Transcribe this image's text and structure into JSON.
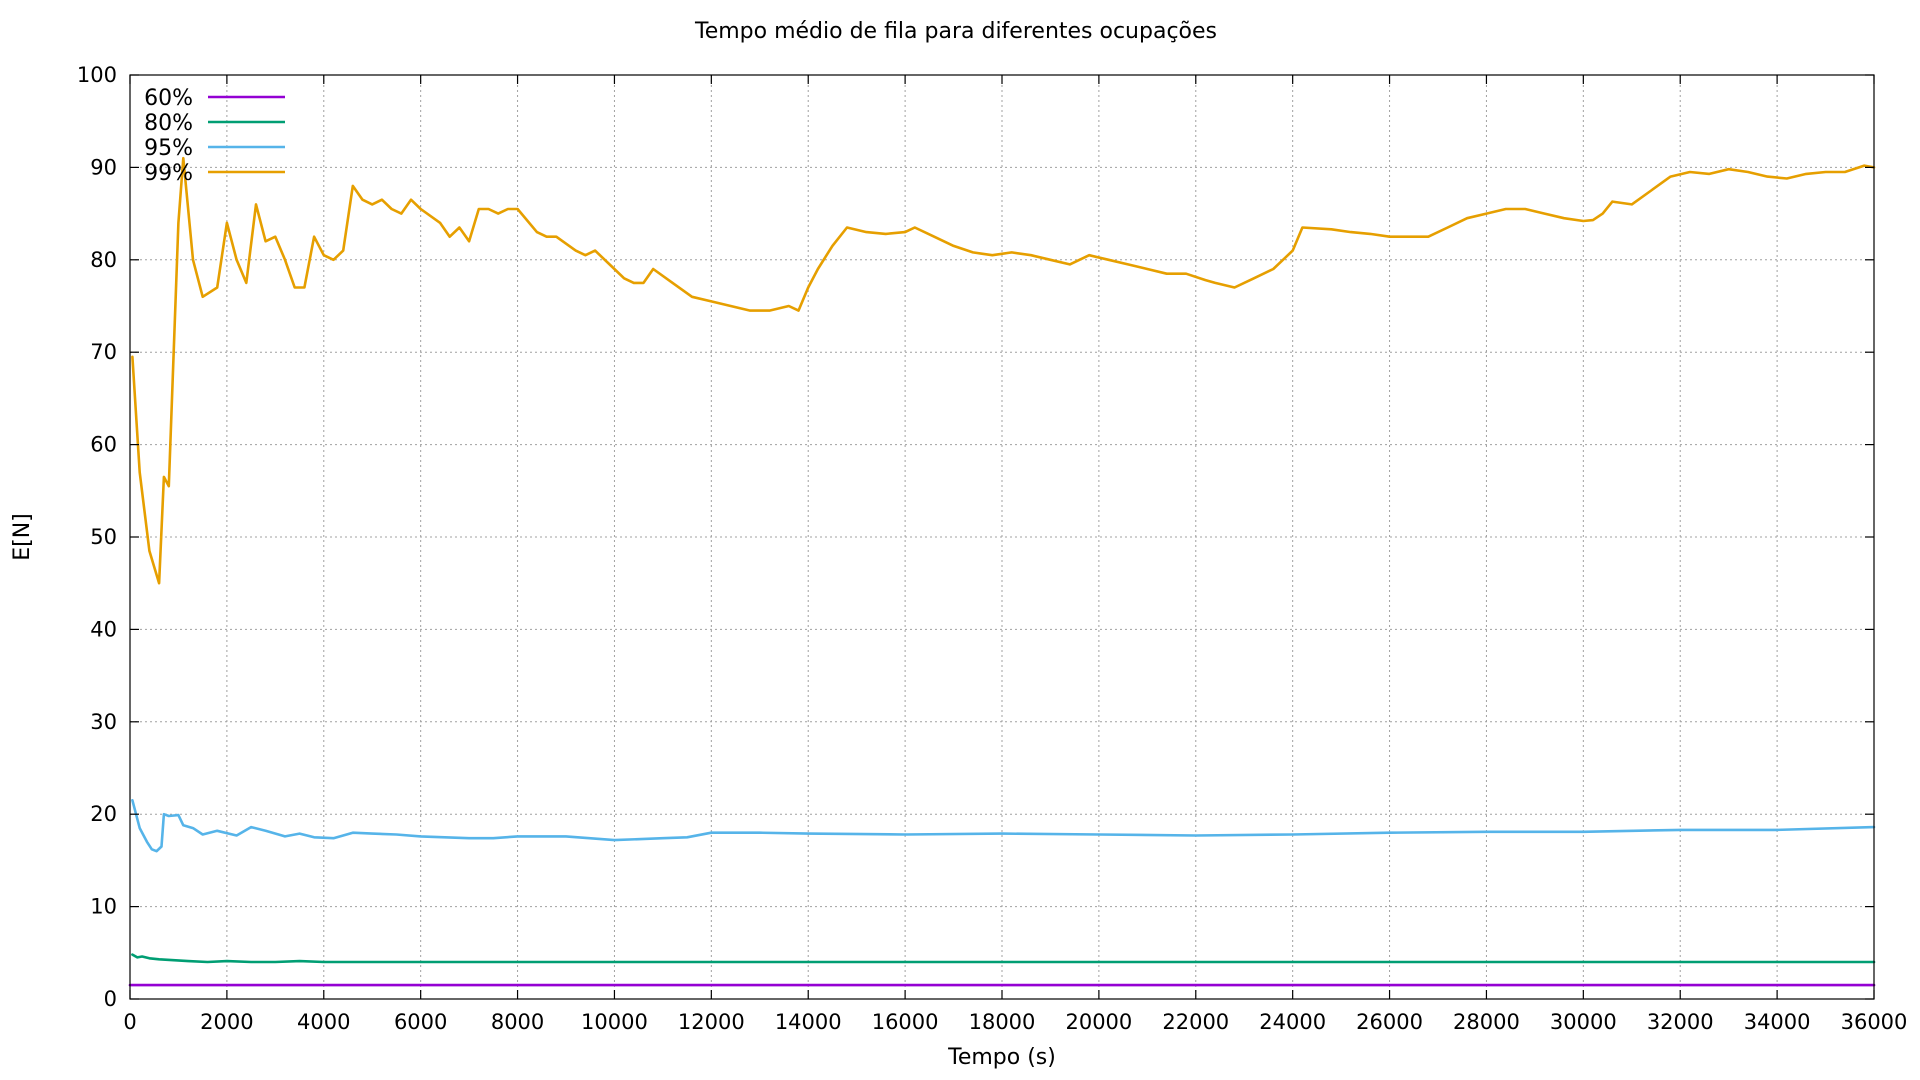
{
  "chart_data": {
    "type": "line",
    "title": "Tempo médio de fila para diferentes ocupações",
    "xlabel": "Tempo (s)",
    "ylabel": "E[N]",
    "xlim": [
      0,
      36000
    ],
    "ylim": [
      0,
      100
    ],
    "xticks": [
      0,
      2000,
      4000,
      6000,
      8000,
      10000,
      12000,
      14000,
      16000,
      18000,
      20000,
      22000,
      24000,
      26000,
      28000,
      30000,
      32000,
      34000,
      36000
    ],
    "yticks": [
      0,
      10,
      20,
      30,
      40,
      50,
      60,
      70,
      80,
      90,
      100
    ],
    "xtick_labels": [
      "0",
      "2000",
      "4000",
      "6000",
      "8000",
      "10000",
      "12000",
      "14000",
      "16000",
      "18000",
      "20000",
      "22000",
      "24000",
      "26000",
      "28000",
      "30000",
      "32000",
      "34000",
      "36000"
    ],
    "ytick_labels": [
      "0",
      "10",
      "20",
      "30",
      "40",
      "50",
      "60",
      "70",
      "80",
      "90",
      "100"
    ],
    "grid": true,
    "legend_position": "top-left",
    "series": [
      {
        "name": "60%",
        "color": "#9400d3",
        "x": [
          0,
          36000
        ],
        "y": [
          1.5,
          1.5
        ]
      },
      {
        "name": "80%",
        "color": "#009e73",
        "x": [
          50,
          150,
          250,
          400,
          600,
          900,
          1200,
          1600,
          2000,
          2500,
          3000,
          3500,
          4000,
          6000,
          10000,
          20000,
          30000,
          36000
        ],
        "y": [
          4.8,
          4.5,
          4.6,
          4.4,
          4.3,
          4.2,
          4.1,
          4.0,
          4.1,
          4.0,
          4.0,
          4.1,
          4.0,
          4.0,
          4.0,
          4.0,
          4.0,
          4.0
        ]
      },
      {
        "name": "95%",
        "color": "#56b4e9",
        "x": [
          50,
          200,
          350,
          450,
          550,
          650,
          700,
          800,
          1000,
          1100,
          1300,
          1500,
          1800,
          2200,
          2500,
          2800,
          3200,
          3500,
          3800,
          4200,
          4600,
          5000,
          5500,
          6000,
          6500,
          7000,
          7500,
          8000,
          9000,
          10000,
          11000,
          11500,
          12000,
          13000,
          14000,
          16000,
          18000,
          20000,
          22000,
          24000,
          26000,
          28000,
          30000,
          32000,
          34000,
          36000
        ],
        "y": [
          21.5,
          18.5,
          17.0,
          16.2,
          16.0,
          16.5,
          20.0,
          19.8,
          19.9,
          18.8,
          18.5,
          17.8,
          18.2,
          17.7,
          18.6,
          18.2,
          17.6,
          17.9,
          17.5,
          17.4,
          18.0,
          17.9,
          17.8,
          17.6,
          17.5,
          17.4,
          17.4,
          17.6,
          17.6,
          17.2,
          17.4,
          17.5,
          18.0,
          18.0,
          17.9,
          17.8,
          17.9,
          17.8,
          17.7,
          17.8,
          18.0,
          18.1,
          18.1,
          18.3,
          18.3,
          18.6
        ]
      },
      {
        "name": "99%",
        "color": "#e69f00",
        "x": [
          50,
          200,
          400,
          600,
          700,
          800,
          1000,
          1100,
          1300,
          1500,
          1800,
          2000,
          2200,
          2400,
          2600,
          2800,
          3000,
          3200,
          3400,
          3600,
          3800,
          4000,
          4200,
          4400,
          4600,
          4800,
          5000,
          5200,
          5400,
          5600,
          5800,
          6000,
          6400,
          6600,
          6800,
          7000,
          7200,
          7400,
          7600,
          7800,
          8000,
          8400,
          8600,
          8800,
          9200,
          9400,
          9600,
          10000,
          10200,
          10400,
          10600,
          10800,
          11200,
          11600,
          12000,
          12400,
          12800,
          13200,
          13600,
          13800,
          14000,
          14200,
          14500,
          14800,
          15200,
          15600,
          16000,
          16200,
          16600,
          17000,
          17400,
          17800,
          18200,
          18600,
          19000,
          19400,
          19800,
          20200,
          20600,
          21000,
          21400,
          21800,
          22200,
          22400,
          22800,
          23200,
          23600,
          23800,
          24000,
          24200,
          24800,
          25200,
          25600,
          26000,
          26400,
          26800,
          27200,
          27600,
          28000,
          28400,
          28800,
          29200,
          29600,
          30000,
          30200,
          30400,
          30600,
          31000,
          31400,
          31800,
          32200,
          32600,
          33000,
          33400,
          33800,
          34200,
          34600,
          35000,
          35400,
          35800,
          36000
        ],
        "y": [
          69.5,
          57.0,
          48.5,
          45.0,
          56.5,
          55.5,
          84.0,
          91.0,
          80.0,
          76.0,
          77.0,
          84.0,
          80.0,
          77.5,
          86.0,
          82.0,
          82.5,
          80.0,
          77.0,
          77.0,
          82.5,
          80.5,
          80.0,
          81.0,
          88.0,
          86.5,
          86.0,
          86.5,
          85.5,
          85.0,
          86.5,
          85.5,
          84.0,
          82.5,
          83.5,
          82.0,
          85.5,
          85.5,
          85.0,
          85.5,
          85.5,
          83.0,
          82.5,
          82.5,
          81.0,
          80.5,
          81.0,
          79.0,
          78.0,
          77.5,
          77.5,
          79.0,
          77.5,
          76.0,
          75.5,
          75.0,
          74.5,
          74.5,
          75.0,
          74.5,
          77.0,
          79.0,
          81.5,
          83.5,
          83.0,
          82.8,
          83.0,
          83.5,
          82.5,
          81.5,
          80.8,
          80.5,
          80.8,
          80.5,
          80.0,
          79.5,
          80.5,
          80.0,
          79.5,
          79.0,
          78.5,
          78.5,
          77.8,
          77.5,
          77.0,
          78.0,
          79.0,
          80.0,
          81.0,
          83.5,
          83.3,
          83.0,
          82.8,
          82.5,
          82.5,
          82.5,
          83.5,
          84.5,
          85.0,
          85.5,
          85.5,
          85.0,
          84.5,
          84.2,
          84.3,
          85.0,
          86.3,
          86.0,
          87.5,
          89.0,
          89.5,
          89.3,
          89.8,
          89.5,
          89.0,
          88.8,
          89.3,
          89.5,
          89.5,
          90.2,
          90.0
        ]
      }
    ]
  }
}
